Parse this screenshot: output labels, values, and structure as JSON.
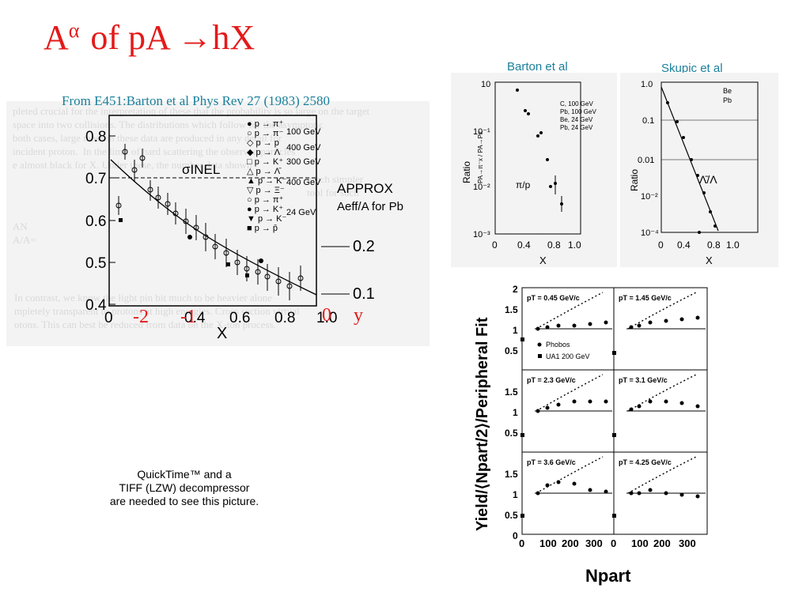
{
  "title": {
    "base": "A",
    "sup": "α",
    "rest": "of pA →hX"
  },
  "source_caption": "From E451:Barton et al Phys Rev 27 (1983) 2580",
  "left_figure": {
    "ylabel": "α",
    "xlabel": "X",
    "y_ticks": [
      "0.8",
      "0.7",
      "0.6",
      "0.5",
      "0.4"
    ],
    "x_ticks": [
      "0",
      "0.2",
      "0.4",
      "0.6",
      "0.8",
      "1.0"
    ],
    "sigma_label": "σINEL",
    "approx_label": "APPROX",
    "aeff_label": "Aeff/A for Pb",
    "right_marks": [
      "0.2",
      "0.1"
    ],
    "legend_energies": [
      "100 GeV",
      "400 GeV",
      "300 GeV",
      "400 GeV",
      "24 GeV"
    ],
    "overlay_numbers": [
      "-2",
      "-1",
      "0",
      "y"
    ]
  },
  "barton_caption": "Barton et al",
  "skupic_caption": "Skupic et al",
  "barton_plot": {
    "ylabel": "Ratio",
    "ylabel2": "PA→π⁻x / PA→Px",
    "xlabel": "X",
    "y_ticks": [
      "10",
      "1",
      "10⁻¹",
      "10⁻²",
      "10⁻³"
    ],
    "x_ticks": [
      "0",
      "0.4",
      "0.8",
      "1.0"
    ],
    "legend": [
      "C, 100 GeV",
      "Pb, 100 GeV",
      "Be, 24 GeV",
      "Pb, 24 GeV"
    ],
    "annotation": "π/p"
  },
  "skupic_plot": {
    "ylabel": "Ratio",
    "xlabel": "X",
    "y_ticks": [
      "1.0",
      "0.1",
      "0.01",
      "10⁻²",
      "10⁻⁴"
    ],
    "x_ticks": [
      "0",
      "0.4",
      "0.8",
      "1.0"
    ],
    "legend": [
      "Be",
      "Pb"
    ],
    "annotation": "Λ̄/Λ"
  },
  "quicktime_notice": [
    "QuickTime™ and a",
    "TIFF (LZW) decompressor",
    "are needed to see this picture."
  ],
  "phobos_figure": {
    "ylabel": "Yield/⟨Npart/2⟩/Peripheral Fit",
    "xlabel": "Npart",
    "y_ticks": [
      "2",
      "1.5",
      "1",
      "0.5",
      "0"
    ],
    "x_ticks": [
      "0",
      "100",
      "200",
      "300"
    ],
    "legend": [
      "Phobos",
      "UA1 200 GeV"
    ],
    "panels": [
      {
        "label": "pT = 0.45 GeV/c"
      },
      {
        "label": "pT = 1.45 GeV/c"
      },
      {
        "label": "pT = 2.3 GeV/c"
      },
      {
        "label": "pT = 3.1 GeV/c"
      },
      {
        "label": "pT = 3.6 GeV/c"
      },
      {
        "label": "pT = 4.25 GeV/c"
      }
    ]
  }
}
